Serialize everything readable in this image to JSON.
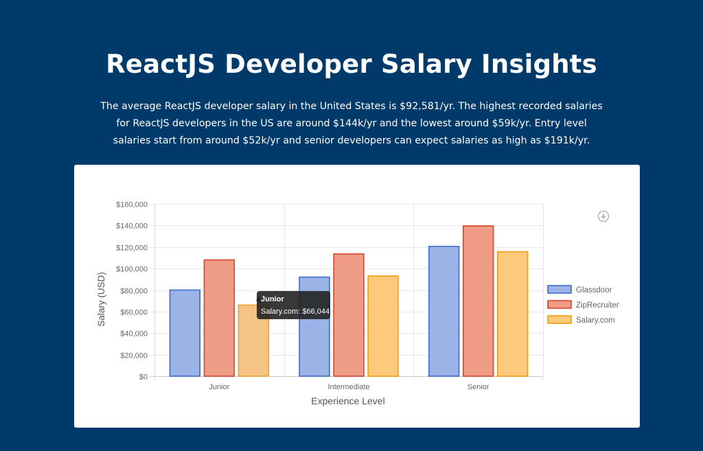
{
  "header": {
    "title": "ReactJS Developer Salary Insights",
    "description": "The average ReactJS developer salary in the United States is $92,581/yr. The highest recorded salaries for ReactJS developers in the US are around $144k/yr and the lowest around $59k/yr. Entry level salaries start from around $52k/yr and senior developers can expect salaries as high as $191k/yr."
  },
  "toolbar": {
    "download_icon": "download-icon"
  },
  "chart_data": {
    "type": "bar",
    "categories": [
      "Junior",
      "Intermediate",
      "Senior"
    ],
    "series": [
      {
        "name": "Glassdoor",
        "values": [
          80000,
          92000,
          120500
        ],
        "fill": "#9bb3e6",
        "stroke": "#3e6cc9"
      },
      {
        "name": "ZipRecruiter",
        "values": [
          108000,
          113500,
          139500
        ],
        "fill": "#ee9c87",
        "stroke": "#d8452a"
      },
      {
        "name": "Salary.com",
        "values": [
          66044,
          93000,
          115500
        ],
        "fill": "#fdc97a",
        "stroke": "#f39c12"
      }
    ],
    "xlabel": "Experience Level",
    "ylabel": "Salary (USD)",
    "ylim": [
      0,
      160000
    ],
    "yticks": [
      0,
      20000,
      40000,
      60000,
      80000,
      100000,
      120000,
      140000,
      160000
    ],
    "ytick_labels": [
      "$0",
      "$20,000",
      "$40,000",
      "$60,000",
      "$80,000",
      "$100,000",
      "$120,000",
      "$140,000",
      "$160,000"
    ],
    "grid": true,
    "legend_position": "right",
    "tooltip": {
      "title": "Junior",
      "body": "Salary.com: $66,044",
      "category": "Junior",
      "series": "Salary.com",
      "highlight_fill": "#f3c483",
      "highlight_stroke": "#f0a030"
    }
  }
}
